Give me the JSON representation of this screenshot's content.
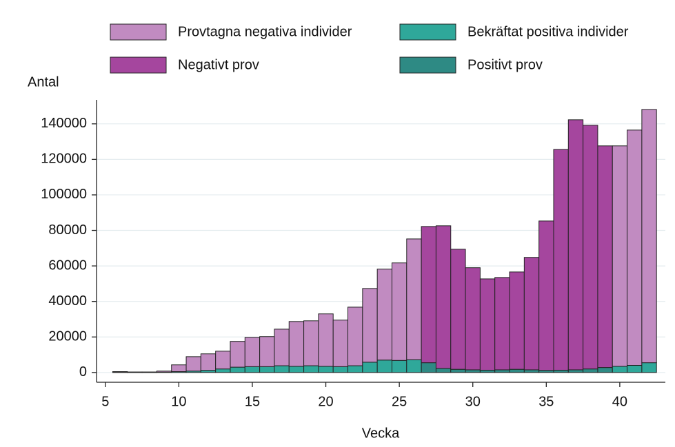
{
  "chart_data": {
    "type": "bar",
    "stacked": true,
    "x_label": "Vecka",
    "y_label": "Antal",
    "x": [
      6,
      7,
      8,
      9,
      10,
      11,
      12,
      13,
      14,
      15,
      16,
      17,
      18,
      19,
      20,
      21,
      22,
      23,
      24,
      25,
      26,
      27,
      28,
      29,
      30,
      31,
      32,
      33,
      34,
      35,
      36,
      37,
      38,
      39,
      40,
      41,
      42
    ],
    "series": [
      {
        "name": "Provtagna negativa individer",
        "color": "#c18bc1",
        "values": [
          400,
          250,
          250,
          600,
          3800,
          8100,
          9300,
          10000,
          14500,
          16500,
          16900,
          20600,
          25200,
          25300,
          29500,
          26200,
          33000,
          41500,
          51200,
          54900,
          68000,
          null,
          null,
          null,
          null,
          null,
          null,
          null,
          null,
          null,
          null,
          null,
          null,
          null,
          124100,
          132500,
          142600
        ]
      },
      {
        "name": "Bekräftat positiva individer",
        "color": "#2fa89a",
        "values": [
          100,
          50,
          50,
          200,
          500,
          800,
          1200,
          2000,
          3000,
          3300,
          3300,
          3800,
          3500,
          3800,
          3500,
          3300,
          3800,
          5800,
          7000,
          6800,
          7200,
          null,
          null,
          null,
          null,
          null,
          null,
          null,
          null,
          null,
          null,
          null,
          null,
          null,
          3500,
          4000,
          5500
        ]
      },
      {
        "name": "Negativt prov",
        "color": "#a5469e",
        "values": [
          null,
          null,
          null,
          null,
          null,
          null,
          null,
          null,
          null,
          null,
          null,
          null,
          null,
          null,
          null,
          null,
          null,
          null,
          null,
          null,
          null,
          76700,
          80300,
          67600,
          57500,
          51400,
          52000,
          54800,
          63300,
          84100,
          124300,
          140800,
          137200,
          124800,
          null,
          null,
          null
        ]
      },
      {
        "name": "Positivt prov",
        "color": "#2e8a84",
        "values": [
          null,
          null,
          null,
          null,
          null,
          null,
          null,
          null,
          null,
          null,
          null,
          null,
          null,
          null,
          null,
          null,
          null,
          null,
          null,
          null,
          null,
          5500,
          2300,
          1800,
          1500,
          1300,
          1500,
          1800,
          1500,
          1200,
          1300,
          1500,
          2000,
          2800,
          null,
          null,
          null
        ]
      }
    ],
    "xlim": [
      4.4,
      43.1
    ],
    "xticks": [
      5,
      10,
      15,
      20,
      25,
      30,
      35,
      40
    ],
    "ylim": [
      -5500,
      153500
    ],
    "yticks": [
      0,
      20000,
      40000,
      60000,
      80000,
      100000,
      120000,
      140000
    ],
    "grid": true
  }
}
